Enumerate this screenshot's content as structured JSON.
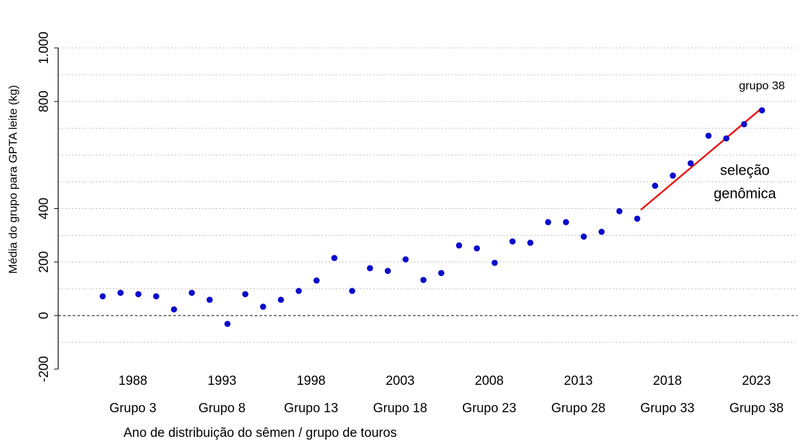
{
  "chart_data": {
    "type": "scatter",
    "y_label": "Média do grupo para GPTA leite (kg)",
    "x_label": "Ano de distribuição do sêmen / grupo de touros",
    "x": [
      1986,
      1987,
      1988,
      1989,
      1990,
      1991,
      1992,
      1993,
      1994,
      1995,
      1996,
      1997,
      1998,
      1999,
      2000,
      2001,
      2002,
      2003,
      2004,
      2005,
      2006,
      2007,
      2008,
      2009,
      2010,
      2011,
      2012,
      2013,
      2014,
      2015,
      2016,
      2017,
      2018,
      2019,
      2020,
      2021,
      2022,
      2023
    ],
    "values": [
      72,
      85,
      80,
      72,
      23,
      85,
      59,
      -31,
      80,
      33,
      59,
      92,
      131,
      215,
      92,
      177,
      167,
      210,
      133,
      159,
      262,
      251,
      197,
      277,
      272,
      349,
      349,
      295,
      313,
      390,
      362,
      485,
      523,
      569,
      672,
      662,
      715,
      767
    ],
    "color": "#0a0acc",
    "xlim": [
      1983.5,
      2025
    ],
    "xticks": [
      1988,
      1993,
      1998,
      2003,
      2008,
      2013,
      2018,
      2023
    ],
    "group_labels": [
      "Grupo 3",
      "Grupo 8",
      "Grupo 13",
      "Grupo 18",
      "Grupo 23",
      "Grupo 28",
      "Grupo 33",
      "Grupo 38"
    ],
    "ylim": [
      -200,
      1000
    ],
    "yticks": [
      -200,
      0,
      200,
      400,
      800,
      {
        "value": 1000,
        "label": "1.000"
      }
    ],
    "ygrid": [
      -100,
      100,
      200,
      300,
      400,
      500,
      600,
      700,
      800,
      900,
      1000
    ],
    "zero_line": true,
    "trend": {
      "x": [
        2016.2,
        2022.9
      ],
      "values": [
        395,
        770
      ],
      "color": "#ee1111"
    },
    "trend_label": [
      "seleção",
      "genômica"
    ],
    "point_label": "grupo 38",
    "point_label_color": "#8fe08f"
  }
}
